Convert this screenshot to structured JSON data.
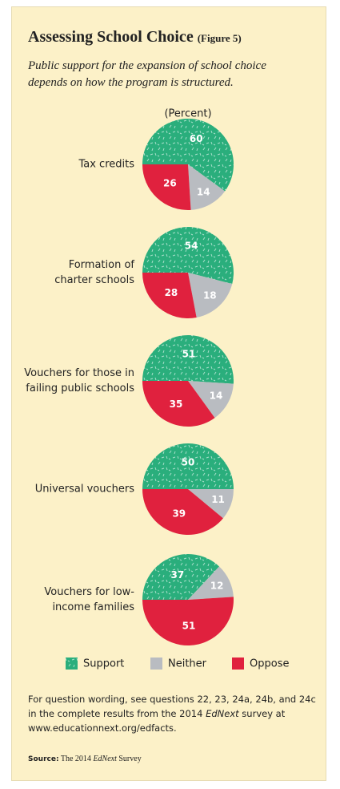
{
  "chart_data": {
    "type": "pie",
    "title": "Assessing School Choice",
    "title_note": "(Figure 5)",
    "subtitle": "Public support for the expansion of school choice depends on how the program is structured.",
    "unit_label": "(Percent)",
    "categories": [
      "Support",
      "Neither",
      "Oppose"
    ],
    "colors": [
      "#2aae7c",
      "#b9bcc1",
      "#e0213e"
    ],
    "pies": [
      {
        "label": [
          "Tax credits"
        ],
        "values": [
          60,
          14,
          26
        ]
      },
      {
        "label": [
          "Formation of",
          "charter schools"
        ],
        "values": [
          54,
          18,
          28
        ]
      },
      {
        "label": [
          "Vouchers for those in",
          "failing public schools"
        ],
        "values": [
          51,
          14,
          35
        ]
      },
      {
        "label": [
          "Universal vouchers"
        ],
        "values": [
          50,
          11,
          39
        ]
      },
      {
        "label": [
          "Vouchers for low-",
          "income families"
        ],
        "values": [
          37,
          12,
          51
        ]
      }
    ],
    "footnote": [
      "For question wording, see questions 22, 23, 24a, 24b, and 24c in the complete results from the 2014 ",
      "EdNext",
      " survey at www.educationnext.org/edfacts."
    ],
    "source": [
      "Source:",
      " The 2014 ",
      "EdNext",
      " Survey"
    ]
  }
}
